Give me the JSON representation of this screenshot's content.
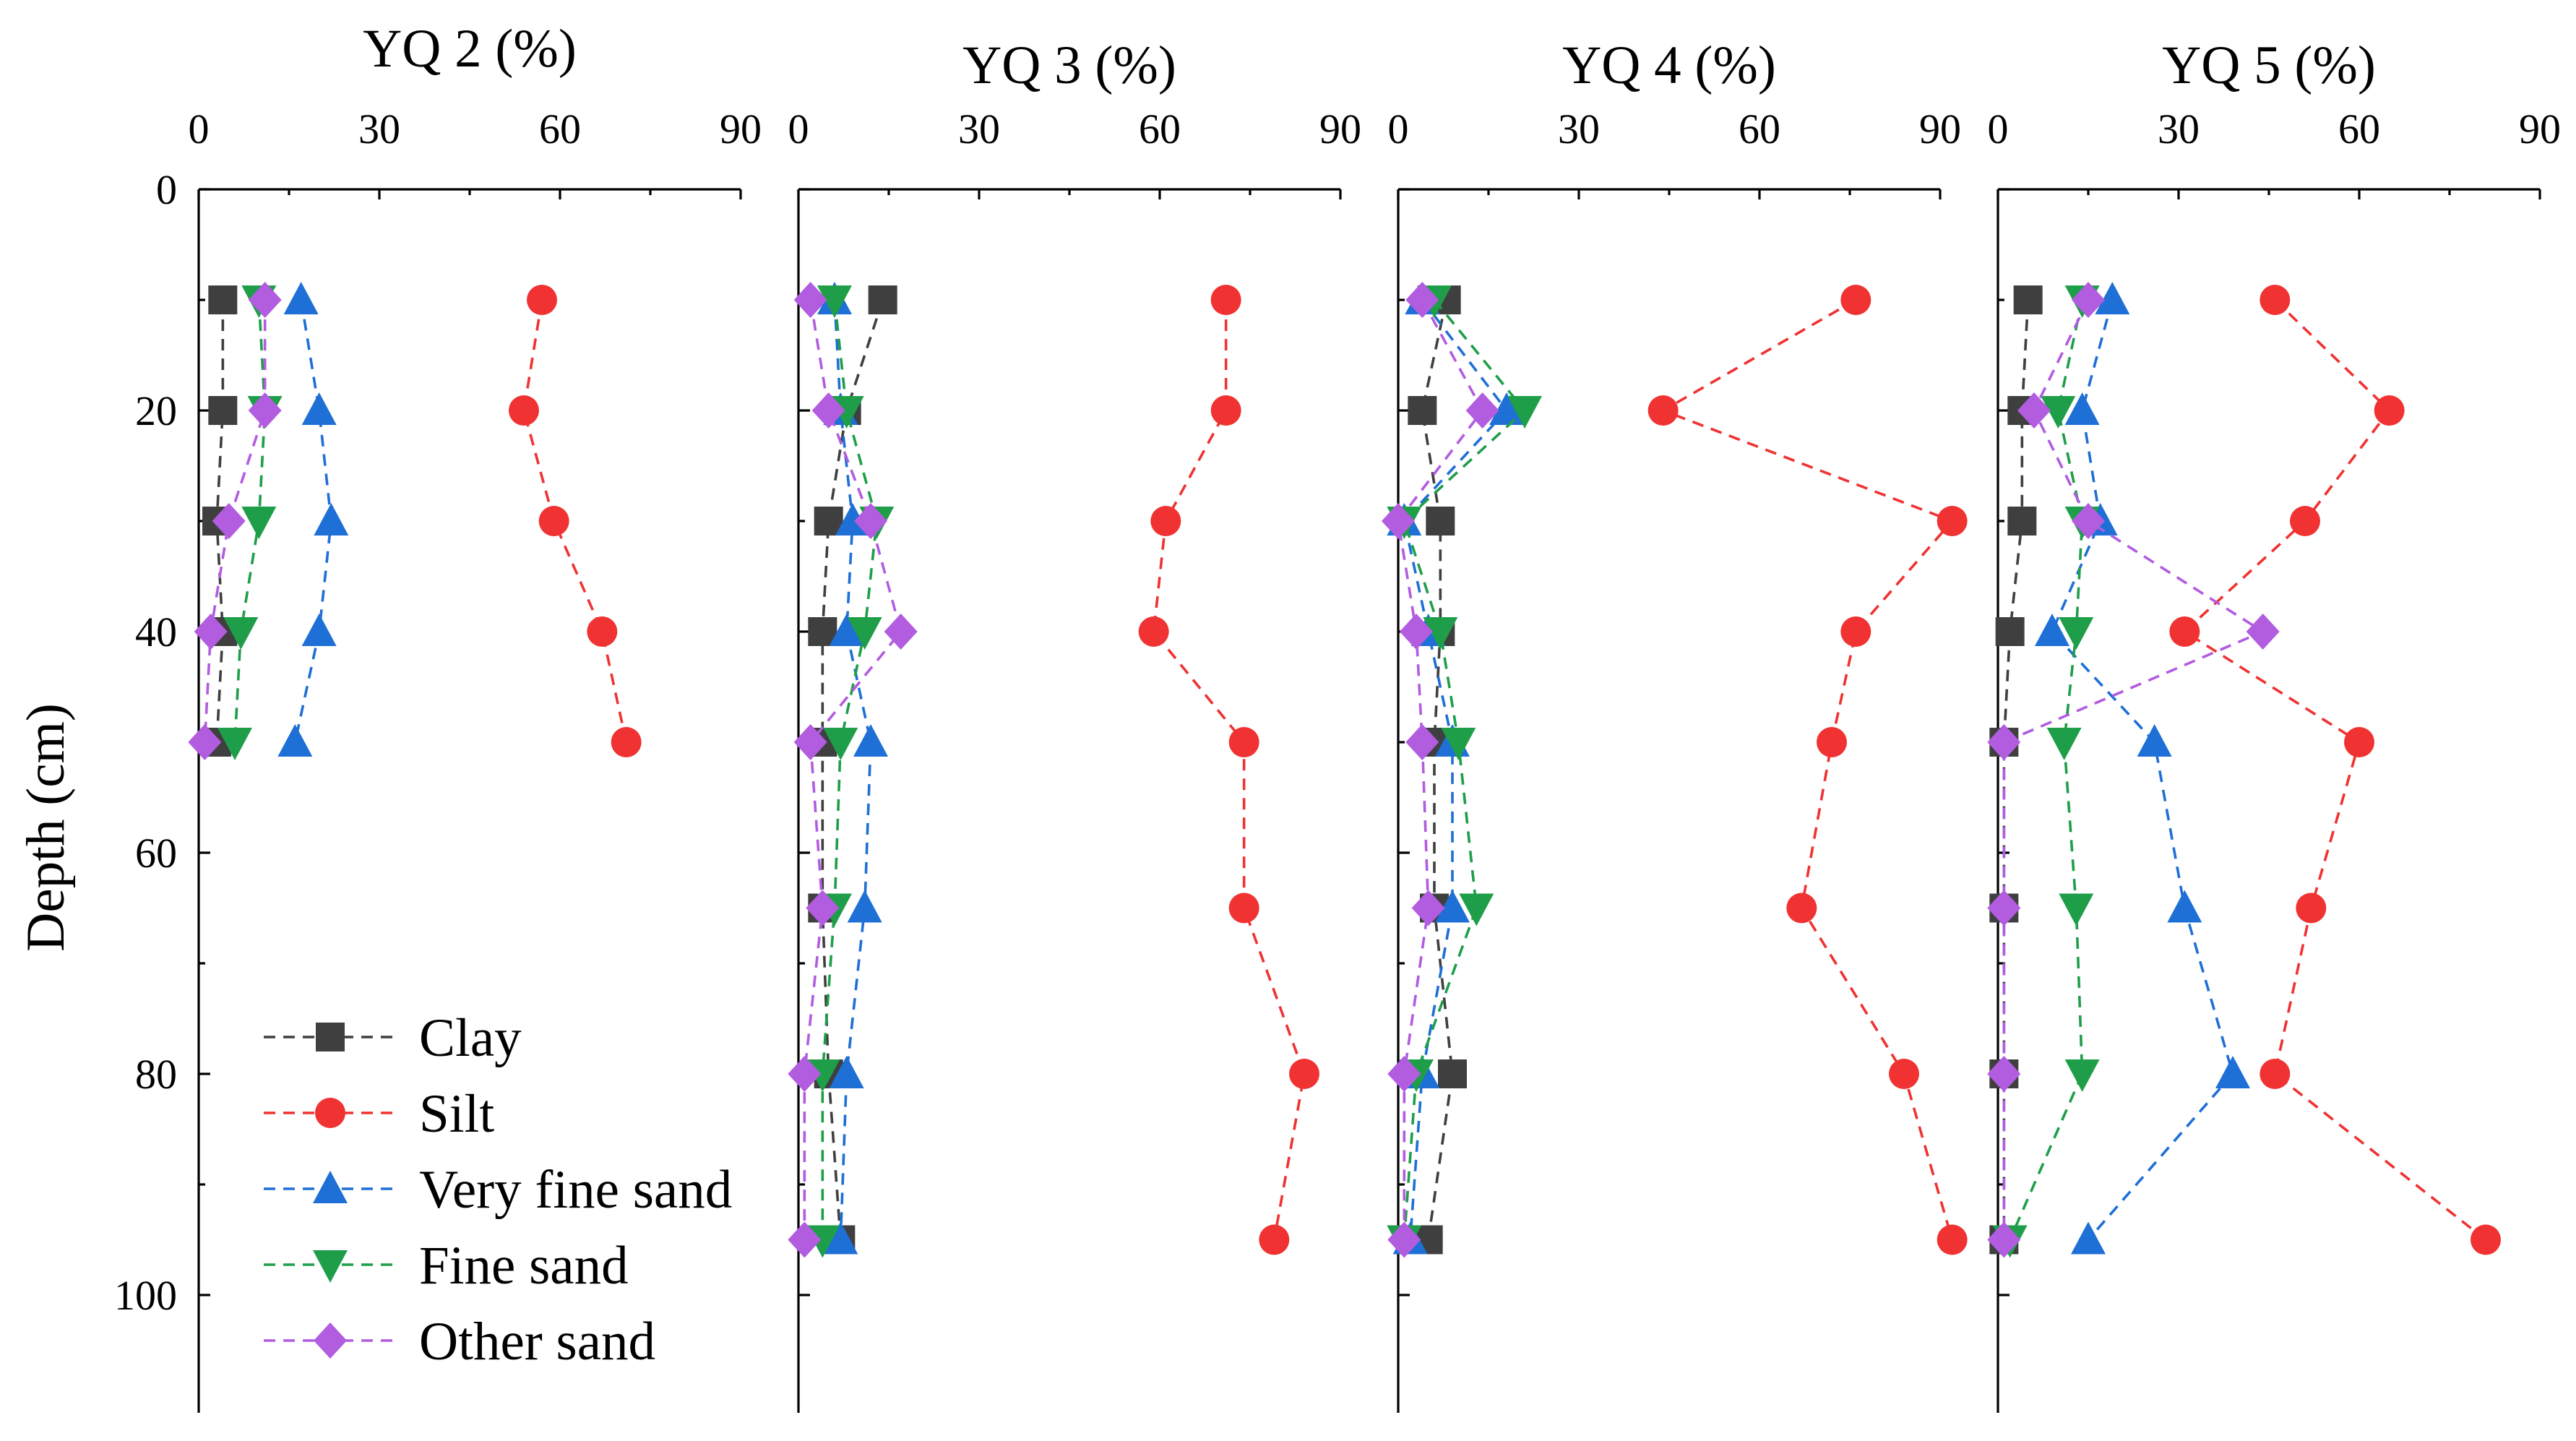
{
  "chart_data": {
    "type": "line",
    "ylabel": "Depth (cm)",
    "ylim": [
      110,
      0
    ],
    "yticks": [
      0,
      20,
      40,
      60,
      80,
      100
    ],
    "xlim": [
      0,
      90
    ],
    "xticks": [
      0,
      30,
      60,
      90
    ],
    "colors": {
      "Clay": "#3f3f3f",
      "Silt": "#f03232",
      "Very fine sand": "#1e6fd6",
      "Fine sand": "#1f9e4a",
      "Other sand": "#b25ce0"
    },
    "markers": {
      "Clay": "square",
      "Silt": "circle",
      "Very fine sand": "triangle-up",
      "Fine sand": "triangle-down",
      "Other sand": "diamond"
    },
    "legend": {
      "placement": "bottom-left of first panel",
      "entries": [
        "Clay",
        "Silt",
        "Very fine sand",
        "Fine sand",
        "Other sand"
      ]
    },
    "panels": [
      {
        "title": "YQ 2 (%)",
        "depths": [
          10,
          20,
          30,
          40,
          50
        ],
        "series": [
          {
            "name": "Clay",
            "values": [
              4,
              4,
              3,
              4,
              3
            ]
          },
          {
            "name": "Silt",
            "values": [
              57,
              54,
              59,
              67,
              71
            ]
          },
          {
            "name": "Very fine sand",
            "values": [
              17,
              20,
              22,
              20,
              16
            ]
          },
          {
            "name": "Fine sand",
            "values": [
              10,
              11,
              10,
              7,
              6
            ]
          },
          {
            "name": "Other sand",
            "values": [
              11,
              11,
              5,
              2,
              1
            ]
          }
        ]
      },
      {
        "title": "YQ 3 (%)",
        "depths": [
          10,
          20,
          30,
          40,
          50,
          65,
          80,
          95
        ],
        "series": [
          {
            "name": "Clay",
            "values": [
              14,
              8,
              5,
              4,
              4,
              4,
              5,
              7
            ]
          },
          {
            "name": "Silt",
            "values": [
              71,
              71,
              61,
              59,
              74,
              74,
              84,
              79
            ]
          },
          {
            "name": "Very fine sand",
            "values": [
              6,
              7,
              9,
              8,
              12,
              11,
              8,
              7
            ]
          },
          {
            "name": "Fine sand",
            "values": [
              6,
              8,
              13,
              11,
              7,
              6,
              4,
              4
            ]
          },
          {
            "name": "Other sand",
            "values": [
              2,
              5,
              12,
              17,
              2,
              4,
              1,
              1
            ]
          }
        ]
      },
      {
        "title": "YQ 4 (%)",
        "depths": [
          10,
          20,
          30,
          40,
          50,
          65,
          80,
          95
        ],
        "series": [
          {
            "name": "Clay",
            "values": [
              8,
              4,
              7,
              7,
              6,
              6,
              9,
              5
            ]
          },
          {
            "name": "Silt",
            "values": [
              76,
              44,
              92,
              76,
              72,
              67,
              84,
              92
            ]
          },
          {
            "name": "Very fine sand",
            "values": [
              4,
              18,
              1,
              5,
              9,
              9,
              4,
              2
            ]
          },
          {
            "name": "Fine sand",
            "values": [
              6,
              21,
              1,
              7,
              10,
              13,
              3,
              1
            ]
          },
          {
            "name": "Other sand",
            "values": [
              4,
              14,
              0,
              3,
              4,
              5,
              1,
              1
            ]
          }
        ]
      },
      {
        "title": "YQ 5 (%)",
        "depths": [
          10,
          20,
          30,
          40,
          50,
          65,
          80,
          95
        ],
        "series": [
          {
            "name": "Clay",
            "values": [
              5,
              4,
              4,
              2,
              1,
              1,
              1,
              1
            ]
          },
          {
            "name": "Silt",
            "values": [
              46,
              65,
              51,
              31,
              60,
              52,
              46,
              81
            ]
          },
          {
            "name": "Very fine sand",
            "values": [
              19,
              14,
              17,
              9,
              26,
              31,
              39,
              15
            ]
          },
          {
            "name": "Fine sand",
            "values": [
              14,
              10,
              14,
              13,
              11,
              13,
              14,
              2
            ]
          },
          {
            "name": "Other sand",
            "values": [
              15,
              6,
              15,
              44,
              1,
              1,
              1,
              1
            ]
          }
        ]
      }
    ]
  }
}
